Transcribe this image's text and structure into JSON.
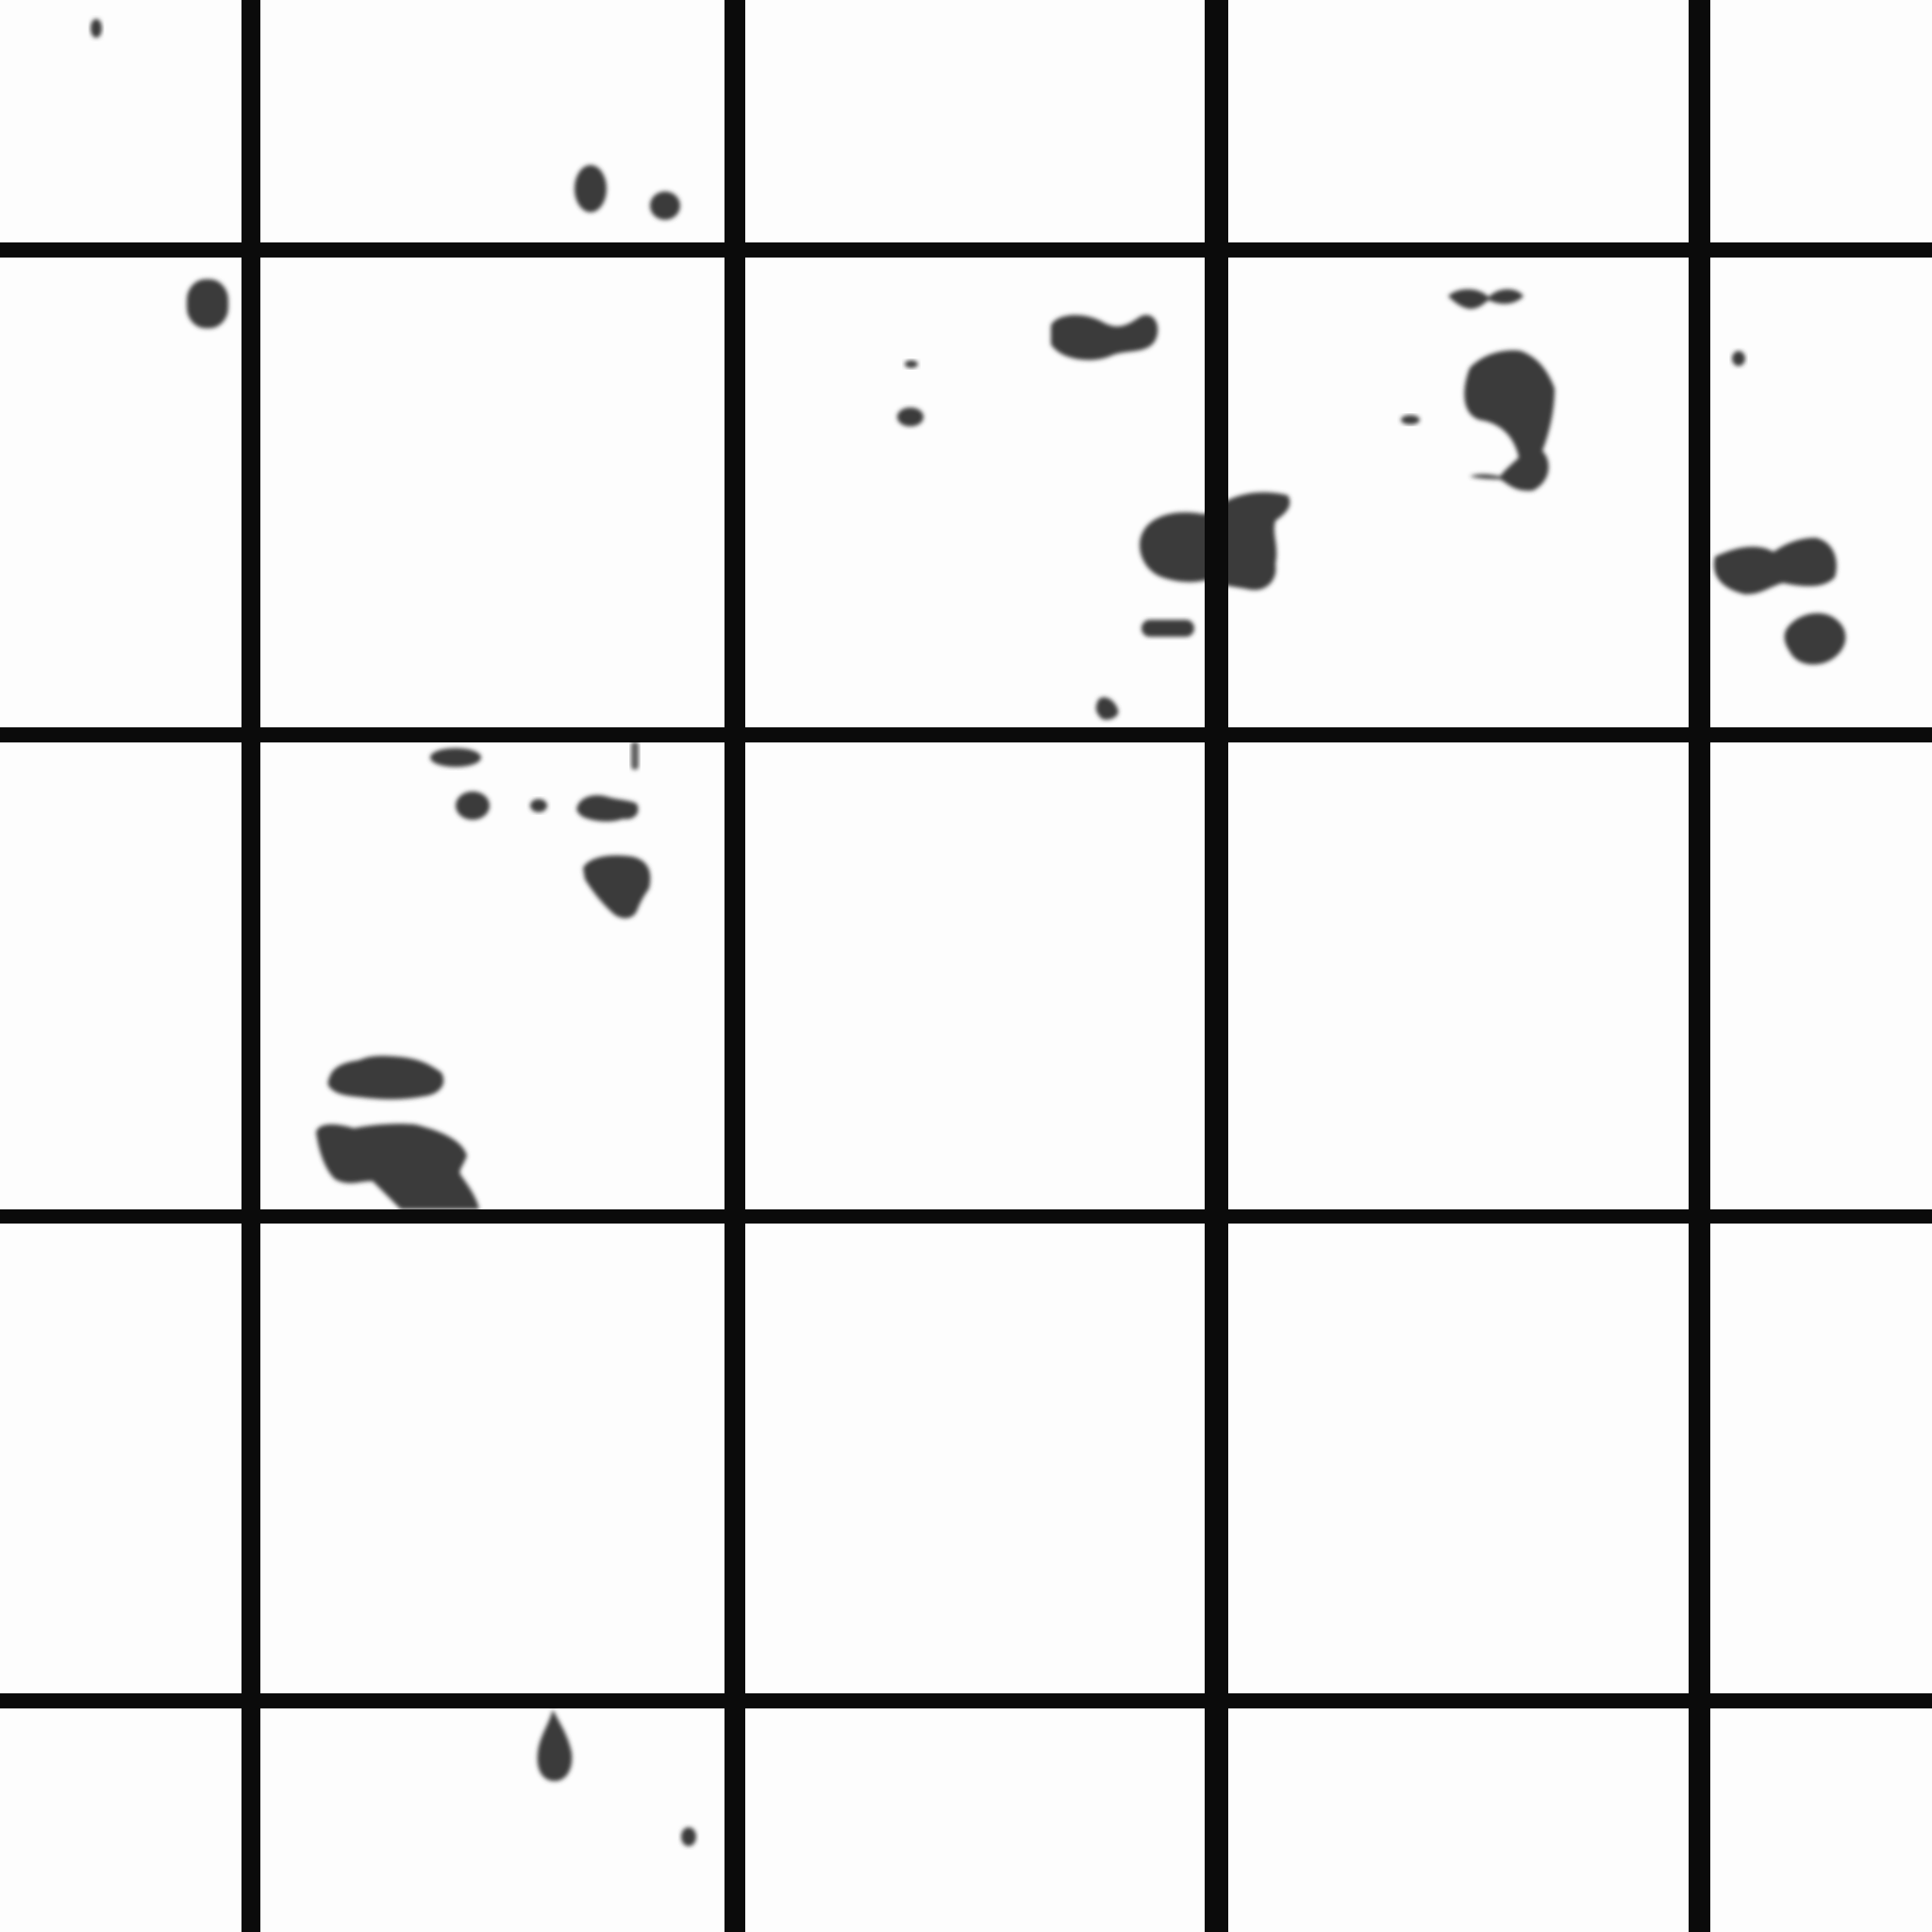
{
  "image": {
    "background_color": "#fdfdfd",
    "grid_color": "#0b0b0b",
    "blob_color": "#3a3a3a",
    "grid": {
      "columns": 5,
      "rows": 5
    },
    "blobs_visible": true
  }
}
